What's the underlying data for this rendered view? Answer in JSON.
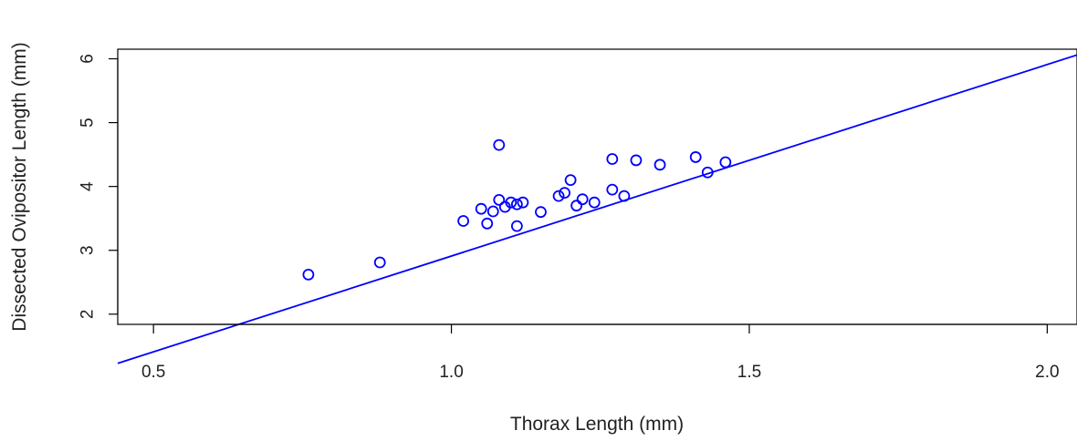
{
  "chart_data": {
    "type": "scatter",
    "title": "",
    "xlabel": "Thorax Length (mm)",
    "ylabel": "Dissected Ovipositor Length (mm)",
    "xlim": [
      0.44,
      2.05
    ],
    "ylim": [
      1.84,
      6.15
    ],
    "xticks": [
      0.5,
      1.0,
      1.5,
      2.0
    ],
    "xtick_labels": [
      "0.5",
      "1.0",
      "1.5",
      "2.0"
    ],
    "yticks": [
      2,
      3,
      4,
      5,
      6
    ],
    "ytick_labels": [
      "2",
      "3",
      "4",
      "5",
      "6"
    ],
    "grid": false,
    "marker_color": "#0000ff",
    "line_color": "#0000ff",
    "points": [
      {
        "x": 0.76,
        "y": 2.62
      },
      {
        "x": 0.88,
        "y": 2.81
      },
      {
        "x": 1.02,
        "y": 3.46
      },
      {
        "x": 1.05,
        "y": 3.65
      },
      {
        "x": 1.06,
        "y": 3.42
      },
      {
        "x": 1.07,
        "y": 3.61
      },
      {
        "x": 1.08,
        "y": 3.79
      },
      {
        "x": 1.08,
        "y": 4.65
      },
      {
        "x": 1.09,
        "y": 3.68
      },
      {
        "x": 1.1,
        "y": 3.75
      },
      {
        "x": 1.11,
        "y": 3.72
      },
      {
        "x": 1.11,
        "y": 3.38
      },
      {
        "x": 1.12,
        "y": 3.75
      },
      {
        "x": 1.15,
        "y": 3.6
      },
      {
        "x": 1.18,
        "y": 3.85
      },
      {
        "x": 1.19,
        "y": 3.9
      },
      {
        "x": 1.2,
        "y": 4.1
      },
      {
        "x": 1.21,
        "y": 3.7
      },
      {
        "x": 1.22,
        "y": 3.8
      },
      {
        "x": 1.24,
        "y": 3.75
      },
      {
        "x": 1.27,
        "y": 4.43
      },
      {
        "x": 1.27,
        "y": 3.95
      },
      {
        "x": 1.29,
        "y": 3.85
      },
      {
        "x": 1.31,
        "y": 4.41
      },
      {
        "x": 1.35,
        "y": 4.34
      },
      {
        "x": 1.41,
        "y": 4.46
      },
      {
        "x": 1.43,
        "y": 4.22
      },
      {
        "x": 1.46,
        "y": 4.38
      }
    ],
    "fit_line": {
      "intercept": -0.09,
      "slope": 3.0
    }
  }
}
